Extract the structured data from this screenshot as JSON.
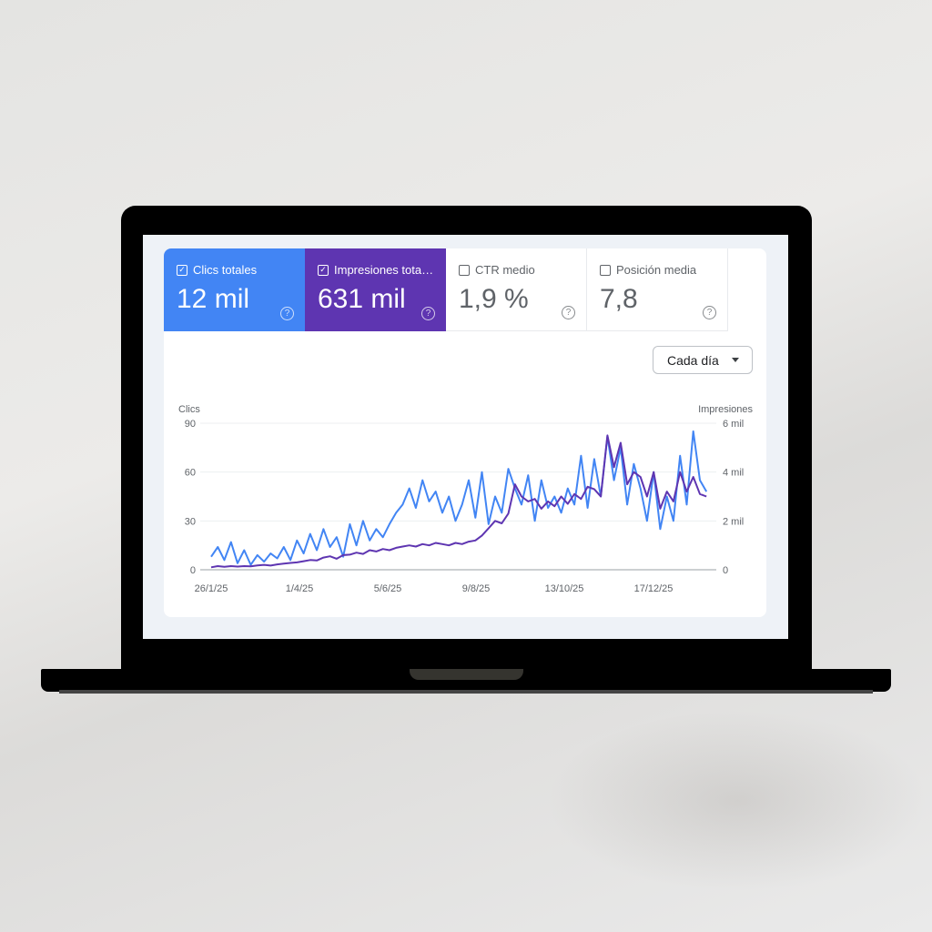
{
  "metrics": [
    {
      "label": "Clics totales",
      "value": "12 mil",
      "checked": true,
      "color": "#4285f4"
    },
    {
      "label": "Impresiones tota…",
      "value": "631 mil",
      "checked": true,
      "color": "#5e35b1"
    },
    {
      "label": "CTR medio",
      "value": "1,9 %",
      "checked": false
    },
    {
      "label": "Posición media",
      "value": "7,8",
      "checked": false
    }
  ],
  "granularity": {
    "selected": "Cada día"
  },
  "chart_data": {
    "type": "line",
    "x_range": [
      "26/1/25",
      "26/1/26"
    ],
    "x_ticks": [
      "26/1/25",
      "1/4/25",
      "5/6/25",
      "9/8/25",
      "13/10/25",
      "17/12/25"
    ],
    "y_left": {
      "label": "Clics",
      "range": [
        0,
        90
      ],
      "ticks": [
        "0",
        "30",
        "60",
        "90"
      ]
    },
    "y_right": {
      "label": "Impresiones",
      "range": [
        0,
        6000
      ],
      "ticks": [
        "0",
        "2 mil",
        "4 mil",
        "6 mil"
      ]
    },
    "grid": true,
    "sample_interval_days": 4.87,
    "series": [
      {
        "name": "Clics",
        "axis": "left",
        "color": "#4285f4",
        "values": [
          8,
          14,
          6,
          17,
          4,
          12,
          3,
          9,
          5,
          10,
          7,
          14,
          6,
          18,
          10,
          22,
          12,
          25,
          14,
          20,
          8,
          28,
          15,
          30,
          18,
          25,
          20,
          28,
          35,
          40,
          50,
          38,
          55,
          42,
          48,
          35,
          45,
          30,
          40,
          55,
          32,
          60,
          28,
          45,
          35,
          62,
          50,
          40,
          58,
          30,
          55,
          38,
          45,
          35,
          50,
          40,
          70,
          38,
          68,
          45,
          82,
          55,
          75,
          40,
          65,
          50,
          30,
          60,
          25,
          45,
          30,
          70,
          40,
          85,
          55,
          48
        ]
      },
      {
        "name": "Impresiones",
        "axis": "right",
        "color": "#5e35b1",
        "values": [
          100,
          150,
          120,
          150,
          130,
          150,
          140,
          180,
          200,
          170,
          220,
          250,
          280,
          300,
          350,
          400,
          380,
          500,
          550,
          450,
          600,
          620,
          700,
          650,
          800,
          750,
          850,
          800,
          900,
          950,
          1000,
          950,
          1050,
          1000,
          1100,
          1050,
          1000,
          1100,
          1050,
          1150,
          1200,
          1400,
          1700,
          2000,
          1900,
          2300,
          3500,
          3000,
          2800,
          2900,
          2500,
          2800,
          2600,
          3000,
          2700,
          3100,
          2900,
          3400,
          3300,
          3000,
          5500,
          4200,
          5200,
          3500,
          4000,
          3800,
          3000,
          4000,
          2500,
          3200,
          2800,
          4000,
          3200,
          3800,
          3100,
          3000
        ]
      }
    ]
  }
}
